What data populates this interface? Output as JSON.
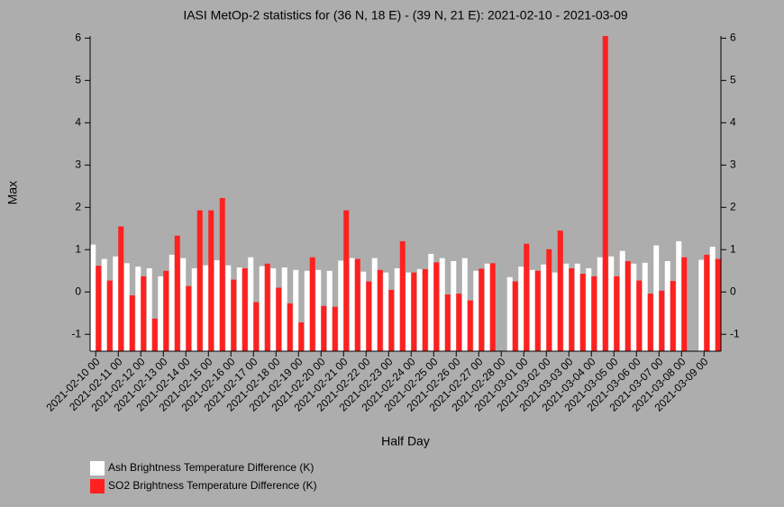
{
  "chart_data": {
    "type": "bar",
    "title": "IASI MetOp-2 statistics for (36 N, 18 E) - (39 N, 21 E): 2021-02-10 - 2021-03-09",
    "xlabel": "Half Day",
    "ylabel": "Max",
    "categories": [
      "2021-02-10 00",
      null,
      "2021-02-11 00",
      null,
      "2021-02-12 00",
      null,
      "2021-02-13 00",
      null,
      "2021-02-14 00",
      null,
      "2021-02-15 00",
      null,
      "2021-02-16 00",
      null,
      "2021-02-17 00",
      null,
      "2021-02-18 00",
      null,
      "2021-02-19 00",
      null,
      "2021-02-20 00",
      null,
      "2021-02-21 00",
      null,
      "2021-02-22 00",
      null,
      "2021-02-23 00",
      null,
      "2021-02-24 00",
      null,
      "2021-02-25 00",
      null,
      "2021-02-26 00",
      null,
      "2021-02-27 00",
      null,
      "2021-02-28 00",
      null,
      "2021-03-01 00",
      null,
      "2021-03-02 00",
      null,
      "2021-03-03 00",
      null,
      "2021-03-04 00",
      null,
      "2021-03-05 00",
      null,
      "2021-03-06 00",
      null,
      "2021-03-07 00",
      null,
      "2021-03-08 00",
      null,
      "2021-03-09 00",
      null
    ],
    "series": [
      {
        "name": "Ash Brightness Temperature Difference (K)",
        "color": "#ffffff",
        "values": [
          1.12,
          0.78,
          0.84,
          0.68,
          0.6,
          0.56,
          0.37,
          0.88,
          0.8,
          0.56,
          0.63,
          0.75,
          0.63,
          0.58,
          0.82,
          0.61,
          0.56,
          0.58,
          0.52,
          0.5,
          0.52,
          0.5,
          0.74,
          0.8,
          0.48,
          0.8,
          0.46,
          0.56,
          0.46,
          0.54,
          0.9,
          0.8,
          0.73,
          0.8,
          0.5,
          0.67,
          null,
          0.35,
          0.6,
          0.52,
          0.65,
          0.46,
          0.67,
          0.67,
          0.56,
          0.82,
          0.84,
          0.97,
          0.67,
          0.69,
          1.1,
          0.73,
          1.2,
          null,
          0.76,
          1.07
        ]
      },
      {
        "name": "SO2 Brightness Temperature Difference (K)",
        "color": "#ff2020",
        "values": [
          0.62,
          0.27,
          1.55,
          -0.08,
          0.37,
          -0.63,
          0.5,
          1.33,
          0.14,
          1.93,
          1.93,
          2.22,
          0.29,
          0.56,
          -0.24,
          0.67,
          0.1,
          -0.27,
          -0.72,
          0.82,
          -0.33,
          -0.35,
          1.93,
          0.78,
          0.25,
          0.52,
          0.05,
          1.2,
          0.46,
          0.54,
          0.7,
          -0.06,
          -0.04,
          -0.2,
          0.55,
          0.68,
          null,
          0.25,
          1.14,
          0.5,
          1.01,
          1.45,
          0.56,
          0.43,
          0.37,
          6.05,
          0.37,
          0.73,
          0.27,
          -0.04,
          0.03,
          0.26,
          0.82,
          null,
          0.88,
          0.78
        ]
      }
    ],
    "ylim": [
      -1.4,
      6.05
    ],
    "yticks": [
      -1,
      0,
      1,
      2,
      3,
      4,
      5,
      6
    ],
    "legend": "bottom-left"
  }
}
